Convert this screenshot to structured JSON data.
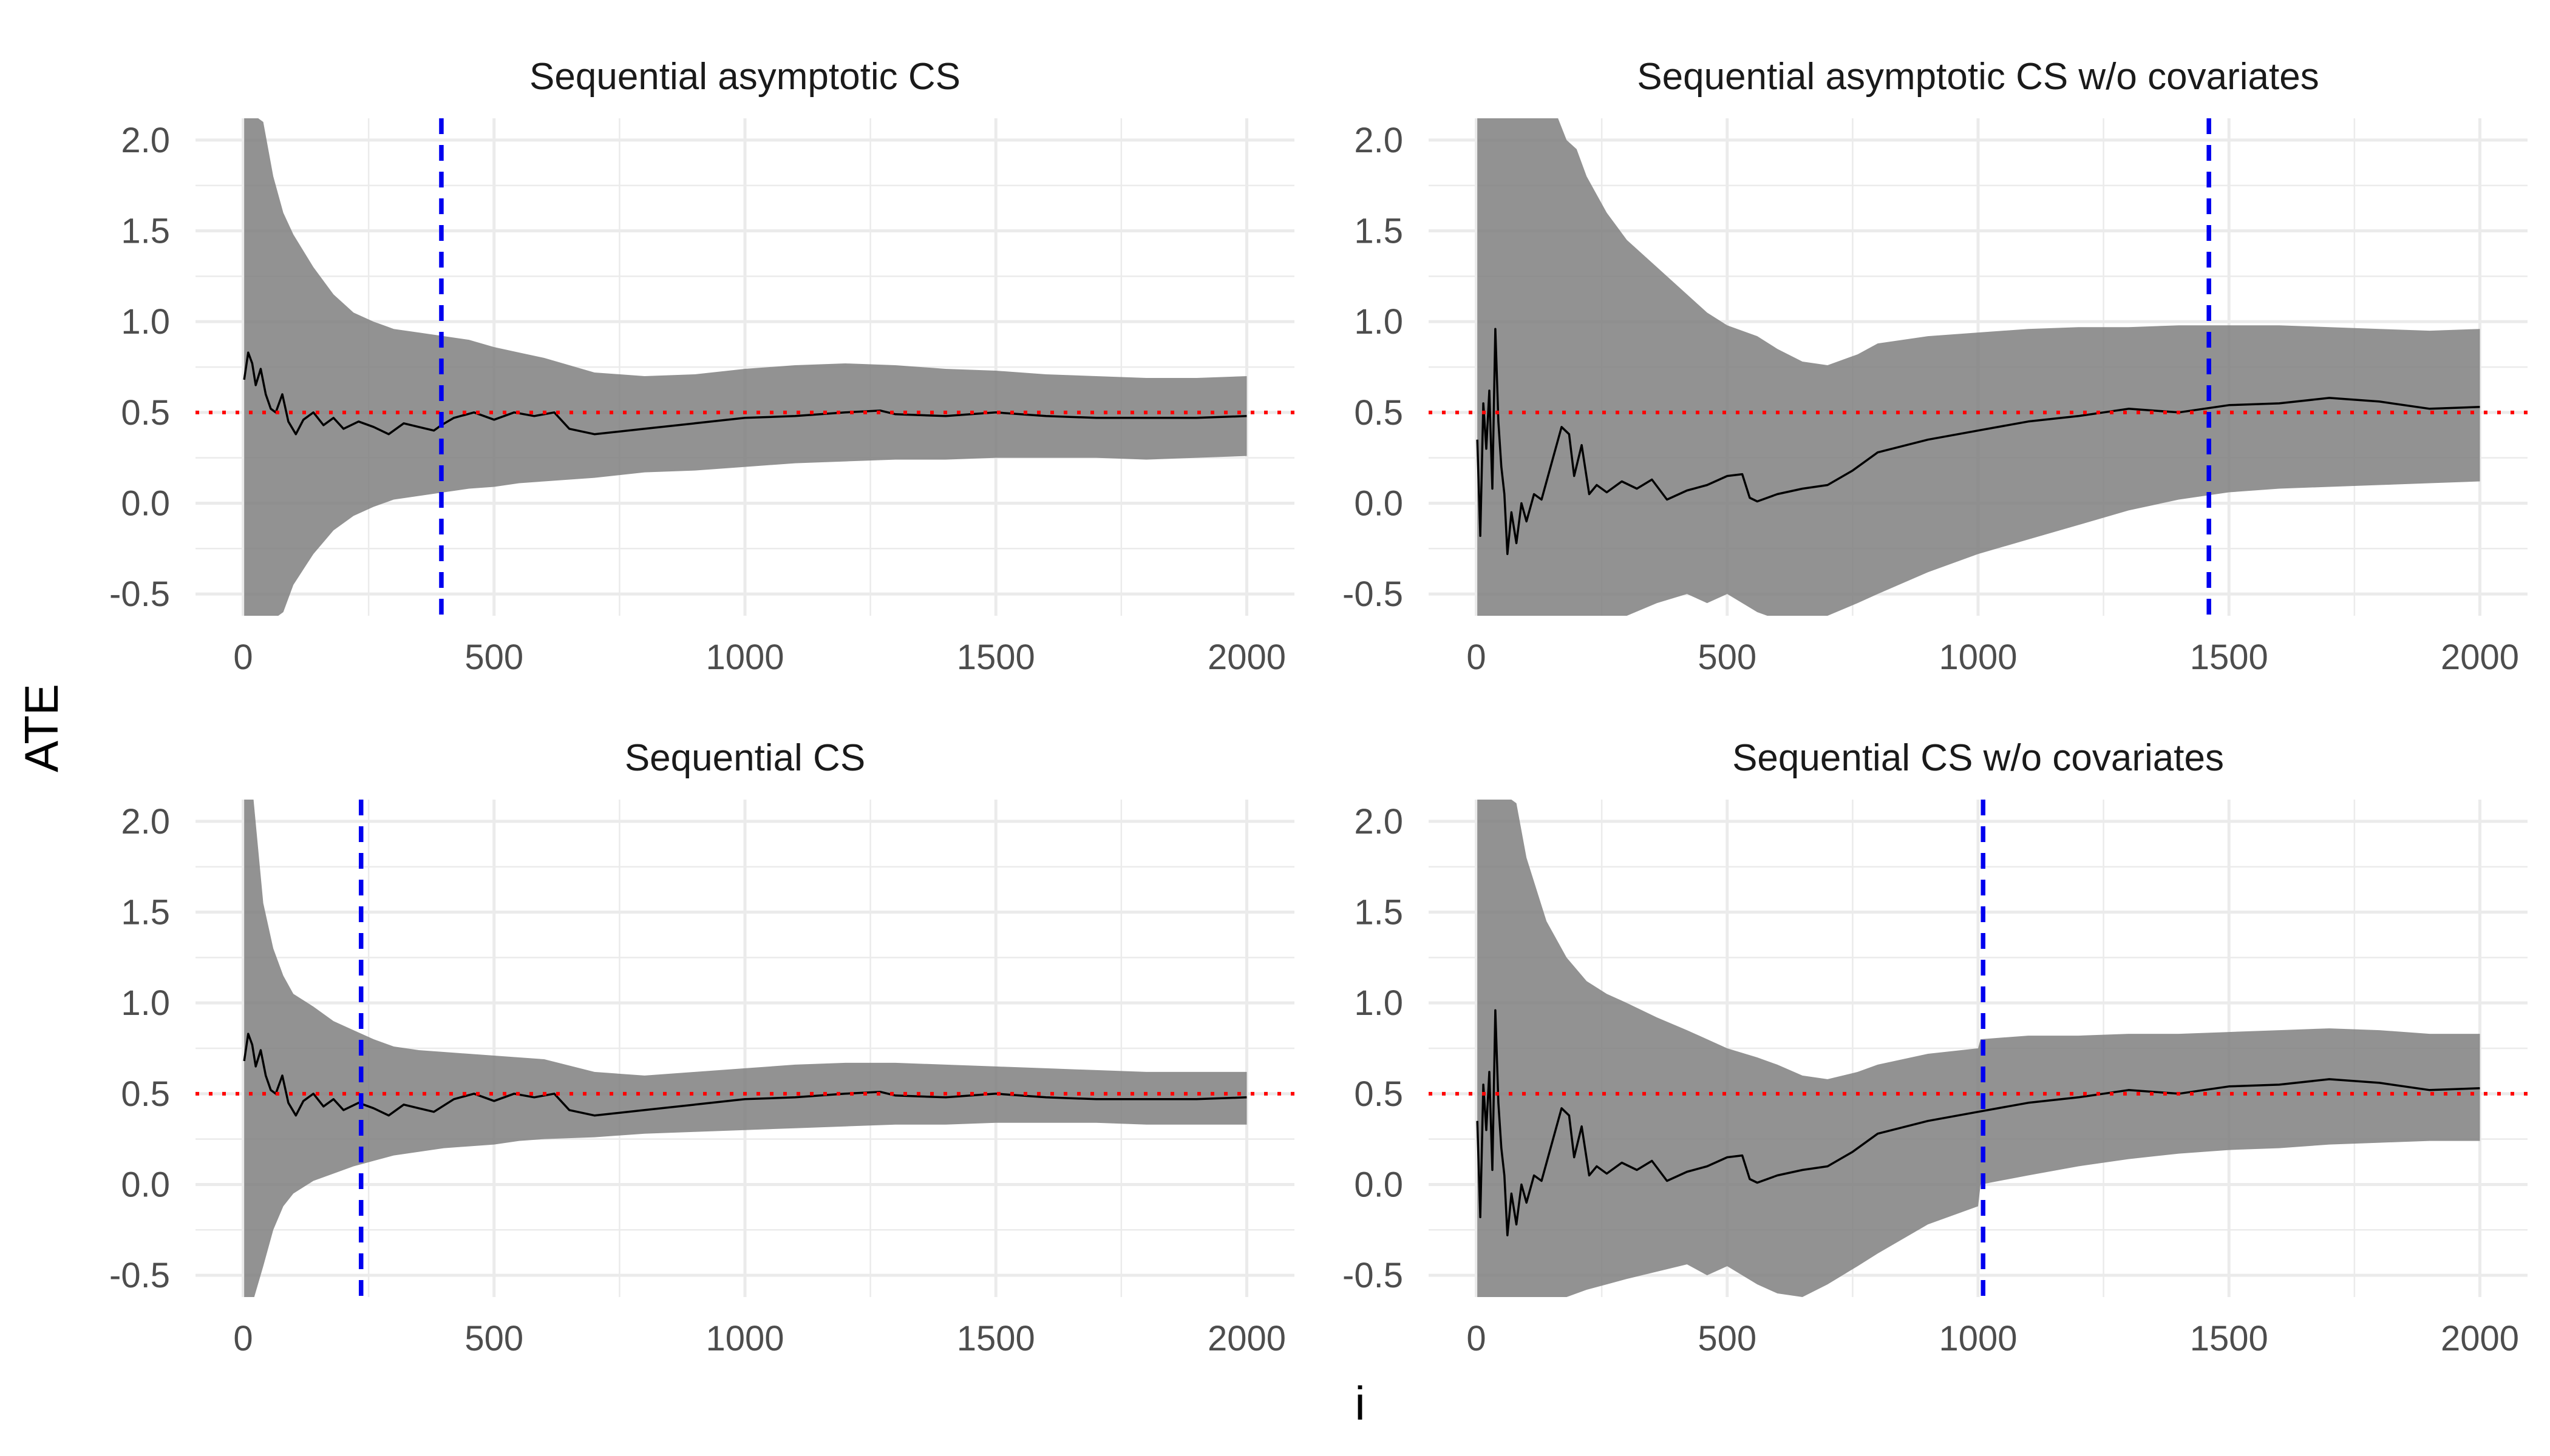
{
  "figure": {
    "ylabel": "ATE",
    "xlabel": "i"
  },
  "style": {
    "band_color": "#7f7f7f",
    "estimate_color": "#000000",
    "reference_color": "#ff0000",
    "stop_line_color": "#0000ee",
    "grid_color": "#ebebeb"
  },
  "chart_data": [
    {
      "type": "line",
      "title": "Sequential asymptotic CS",
      "xlim": [
        -95,
        2095
      ],
      "ylim": [
        -0.62,
        2.12
      ],
      "xticks": [
        0,
        500,
        1000,
        1500,
        2000
      ],
      "yticks": [
        -0.5,
        0.0,
        0.5,
        1.0,
        1.5,
        2.0
      ],
      "ytick_labels": [
        "-0.5",
        "0.0",
        "0.5",
        "1.0",
        "1.5",
        "2.0"
      ],
      "true_value": 0.5,
      "stopping_time": 395,
      "estimate": {
        "x": [
          2,
          10,
          18,
          25,
          35,
          45,
          55,
          65,
          78,
          90,
          105,
          120,
          140,
          160,
          180,
          200,
          230,
          260,
          290,
          320,
          350,
          380,
          395,
          420,
          460,
          500,
          540,
          580,
          620,
          650,
          700,
          800,
          900,
          1000,
          1100,
          1200,
          1270,
          1300,
          1400,
          1500,
          1600,
          1700,
          1800,
          1900,
          2000
        ],
        "y": [
          0.68,
          0.83,
          0.77,
          0.65,
          0.74,
          0.6,
          0.52,
          0.5,
          0.6,
          0.45,
          0.38,
          0.46,
          0.5,
          0.43,
          0.47,
          0.41,
          0.45,
          0.42,
          0.38,
          0.44,
          0.42,
          0.4,
          0.43,
          0.47,
          0.5,
          0.46,
          0.5,
          0.48,
          0.5,
          0.41,
          0.38,
          0.41,
          0.44,
          0.47,
          0.48,
          0.5,
          0.51,
          0.49,
          0.48,
          0.5,
          0.48,
          0.47,
          0.47,
          0.47,
          0.48
        ]
      },
      "band": {
        "x": [
          2,
          20,
          40,
          60,
          80,
          100,
          140,
          180,
          220,
          260,
          300,
          350,
          400,
          450,
          500,
          550,
          600,
          700,
          800,
          900,
          1000,
          1100,
          1200,
          1300,
          1400,
          1500,
          1600,
          1700,
          1800,
          1900,
          2000
        ],
        "lower": [
          -3.0,
          -2.0,
          -1.2,
          -0.85,
          -0.6,
          -0.45,
          -0.28,
          -0.15,
          -0.07,
          -0.02,
          0.02,
          0.04,
          0.06,
          0.08,
          0.09,
          0.11,
          0.12,
          0.14,
          0.17,
          0.18,
          0.2,
          0.22,
          0.23,
          0.24,
          0.24,
          0.25,
          0.25,
          0.25,
          0.24,
          0.25,
          0.26
        ],
        "upper": [
          3.0,
          2.6,
          2.1,
          1.8,
          1.6,
          1.48,
          1.3,
          1.15,
          1.05,
          1.0,
          0.96,
          0.94,
          0.92,
          0.9,
          0.86,
          0.83,
          0.8,
          0.72,
          0.7,
          0.71,
          0.74,
          0.76,
          0.77,
          0.76,
          0.74,
          0.73,
          0.71,
          0.7,
          0.69,
          0.69,
          0.7
        ]
      }
    },
    {
      "type": "line",
      "title": "Sequential asymptotic CS w/o covariates",
      "xlim": [
        -95,
        2095
      ],
      "ylim": [
        -0.62,
        2.12
      ],
      "xticks": [
        0,
        500,
        1000,
        1500,
        2000
      ],
      "yticks": [
        -0.5,
        0.0,
        0.5,
        1.0,
        1.5,
        2.0
      ],
      "ytick_labels": [
        "-0.5",
        "0.0",
        "0.5",
        "1.0",
        "1.5",
        "2.0"
      ],
      "true_value": 0.5,
      "stopping_time": 1460,
      "estimate": {
        "x": [
          2,
          8,
          14,
          20,
          26,
          32,
          38,
          44,
          50,
          56,
          62,
          70,
          80,
          90,
          100,
          115,
          130,
          150,
          170,
          185,
          195,
          210,
          225,
          240,
          260,
          290,
          320,
          350,
          380,
          420,
          460,
          500,
          530,
          545,
          560,
          600,
          650,
          700,
          750,
          800,
          900,
          1000,
          1100,
          1200,
          1300,
          1400,
          1500,
          1600,
          1700,
          1800,
          1900,
          2000
        ],
        "y": [
          0.35,
          -0.18,
          0.55,
          0.3,
          0.62,
          0.08,
          0.96,
          0.45,
          0.2,
          0.05,
          -0.28,
          -0.05,
          -0.22,
          0.0,
          -0.1,
          0.05,
          0.02,
          0.22,
          0.42,
          0.38,
          0.15,
          0.32,
          0.05,
          0.1,
          0.06,
          0.12,
          0.08,
          0.13,
          0.02,
          0.07,
          0.1,
          0.15,
          0.16,
          0.03,
          0.01,
          0.05,
          0.08,
          0.1,
          0.18,
          0.28,
          0.35,
          0.4,
          0.45,
          0.48,
          0.52,
          0.5,
          0.54,
          0.55,
          0.58,
          0.56,
          0.52,
          0.53
        ]
      },
      "band": {
        "x": [
          2,
          20,
          40,
          60,
          80,
          100,
          140,
          160,
          180,
          200,
          220,
          260,
          300,
          360,
          420,
          460,
          500,
          560,
          600,
          650,
          700,
          760,
          800,
          900,
          1000,
          1100,
          1200,
          1300,
          1400,
          1500,
          1600,
          1700,
          1800,
          1900,
          2000
        ],
        "lower": [
          -3.0,
          -2.5,
          -2.0,
          -1.6,
          -1.3,
          -1.1,
          -0.95,
          -0.85,
          -0.8,
          -0.75,
          -0.72,
          -0.68,
          -0.62,
          -0.55,
          -0.5,
          -0.55,
          -0.5,
          -0.6,
          -0.65,
          -0.7,
          -0.62,
          -0.55,
          -0.5,
          -0.38,
          -0.28,
          -0.2,
          -0.12,
          -0.04,
          0.02,
          0.06,
          0.08,
          0.09,
          0.1,
          0.11,
          0.12
        ],
        "upper": [
          3.0,
          3.0,
          3.0,
          3.0,
          2.8,
          2.6,
          2.3,
          2.15,
          2.0,
          1.95,
          1.8,
          1.6,
          1.45,
          1.3,
          1.15,
          1.05,
          0.98,
          0.92,
          0.85,
          0.78,
          0.76,
          0.82,
          0.88,
          0.92,
          0.94,
          0.96,
          0.97,
          0.97,
          0.98,
          0.98,
          0.98,
          0.97,
          0.96,
          0.95,
          0.96
        ]
      }
    },
    {
      "type": "line",
      "title": "Sequential CS",
      "xlim": [
        -95,
        2095
      ],
      "ylim": [
        -0.62,
        2.12
      ],
      "xticks": [
        0,
        500,
        1000,
        1500,
        2000
      ],
      "yticks": [
        -0.5,
        0.0,
        0.5,
        1.0,
        1.5,
        2.0
      ],
      "ytick_labels": [
        "-0.5",
        "0.0",
        "0.5",
        "1.0",
        "1.5",
        "2.0"
      ],
      "true_value": 0.5,
      "stopping_time": 235,
      "estimate": {
        "x": [
          2,
          10,
          18,
          25,
          35,
          45,
          55,
          65,
          78,
          90,
          105,
          120,
          140,
          160,
          180,
          200,
          230,
          260,
          290,
          320,
          350,
          380,
          420,
          460,
          500,
          540,
          580,
          620,
          650,
          700,
          800,
          900,
          1000,
          1100,
          1200,
          1270,
          1300,
          1400,
          1500,
          1600,
          1700,
          1800,
          1900,
          2000
        ],
        "y": [
          0.68,
          0.83,
          0.77,
          0.65,
          0.74,
          0.6,
          0.52,
          0.5,
          0.6,
          0.45,
          0.38,
          0.46,
          0.5,
          0.43,
          0.47,
          0.41,
          0.45,
          0.42,
          0.38,
          0.44,
          0.42,
          0.4,
          0.47,
          0.5,
          0.46,
          0.5,
          0.48,
          0.5,
          0.41,
          0.38,
          0.41,
          0.44,
          0.47,
          0.48,
          0.5,
          0.51,
          0.49,
          0.48,
          0.5,
          0.48,
          0.47,
          0.47,
          0.47,
          0.48
        ]
      },
      "band": {
        "x": [
          2,
          20,
          40,
          60,
          80,
          100,
          140,
          180,
          220,
          260,
          300,
          350,
          400,
          450,
          500,
          550,
          600,
          700,
          800,
          900,
          1000,
          1100,
          1200,
          1300,
          1400,
          1500,
          1600,
          1700,
          1800,
          1900,
          2000
        ],
        "lower": [
          -3.0,
          -0.9,
          -0.45,
          -0.25,
          -0.12,
          -0.05,
          0.02,
          0.06,
          0.1,
          0.13,
          0.16,
          0.18,
          0.2,
          0.21,
          0.22,
          0.24,
          0.25,
          0.26,
          0.28,
          0.29,
          0.3,
          0.31,
          0.32,
          0.33,
          0.33,
          0.34,
          0.34,
          0.34,
          0.33,
          0.33,
          0.33
        ],
        "upper": [
          3.0,
          2.2,
          1.55,
          1.3,
          1.15,
          1.05,
          0.98,
          0.9,
          0.85,
          0.8,
          0.76,
          0.74,
          0.73,
          0.72,
          0.71,
          0.7,
          0.69,
          0.62,
          0.6,
          0.62,
          0.64,
          0.66,
          0.67,
          0.67,
          0.66,
          0.65,
          0.64,
          0.63,
          0.62,
          0.62,
          0.62
        ]
      }
    },
    {
      "type": "line",
      "title": "Sequential CS w/o covariates",
      "xlim": [
        -95,
        2095
      ],
      "ylim": [
        -0.62,
        2.12
      ],
      "xticks": [
        0,
        500,
        1000,
        1500,
        2000
      ],
      "yticks": [
        -0.5,
        0.0,
        0.5,
        1.0,
        1.5,
        2.0
      ],
      "ytick_labels": [
        "-0.5",
        "0.0",
        "0.5",
        "1.0",
        "1.5",
        "2.0"
      ],
      "true_value": 0.5,
      "stopping_time": 1010,
      "estimate": {
        "x": [
          2,
          8,
          14,
          20,
          26,
          32,
          38,
          44,
          50,
          56,
          62,
          70,
          80,
          90,
          100,
          115,
          130,
          150,
          170,
          185,
          195,
          210,
          225,
          240,
          260,
          290,
          320,
          350,
          380,
          420,
          460,
          500,
          530,
          545,
          560,
          600,
          650,
          700,
          750,
          800,
          900,
          1000,
          1100,
          1200,
          1300,
          1400,
          1500,
          1600,
          1700,
          1800,
          1900,
          2000
        ],
        "y": [
          0.35,
          -0.18,
          0.55,
          0.3,
          0.62,
          0.08,
          0.96,
          0.45,
          0.2,
          0.05,
          -0.28,
          -0.05,
          -0.22,
          0.0,
          -0.1,
          0.05,
          0.02,
          0.22,
          0.42,
          0.38,
          0.15,
          0.32,
          0.05,
          0.1,
          0.06,
          0.12,
          0.08,
          0.13,
          0.02,
          0.07,
          0.1,
          0.15,
          0.16,
          0.03,
          0.01,
          0.05,
          0.08,
          0.1,
          0.18,
          0.28,
          0.35,
          0.4,
          0.45,
          0.48,
          0.52,
          0.5,
          0.54,
          0.55,
          0.58,
          0.56,
          0.52,
          0.53
        ]
      },
      "band": {
        "x": [
          2,
          20,
          40,
          60,
          80,
          100,
          140,
          180,
          220,
          260,
          300,
          360,
          420,
          460,
          500,
          560,
          600,
          650,
          700,
          760,
          800,
          900,
          1000,
          1005,
          1100,
          1200,
          1300,
          1400,
          1500,
          1600,
          1700,
          1800,
          1900,
          2000
        ],
        "lower": [
          -3.0,
          -2.5,
          -1.8,
          -1.3,
          -1.0,
          -0.85,
          -0.7,
          -0.62,
          -0.58,
          -0.55,
          -0.52,
          -0.48,
          -0.44,
          -0.5,
          -0.45,
          -0.55,
          -0.6,
          -0.62,
          -0.55,
          -0.45,
          -0.38,
          -0.22,
          -0.12,
          0.0,
          0.05,
          0.1,
          0.14,
          0.17,
          0.19,
          0.2,
          0.22,
          0.23,
          0.24,
          0.24
        ],
        "upper": [
          3.0,
          3.0,
          3.0,
          2.5,
          2.1,
          1.8,
          1.45,
          1.25,
          1.12,
          1.05,
          1.0,
          0.92,
          0.85,
          0.8,
          0.75,
          0.7,
          0.66,
          0.6,
          0.58,
          0.62,
          0.66,
          0.72,
          0.75,
          0.8,
          0.82,
          0.82,
          0.83,
          0.83,
          0.84,
          0.85,
          0.86,
          0.85,
          0.83,
          0.83
        ]
      }
    }
  ]
}
